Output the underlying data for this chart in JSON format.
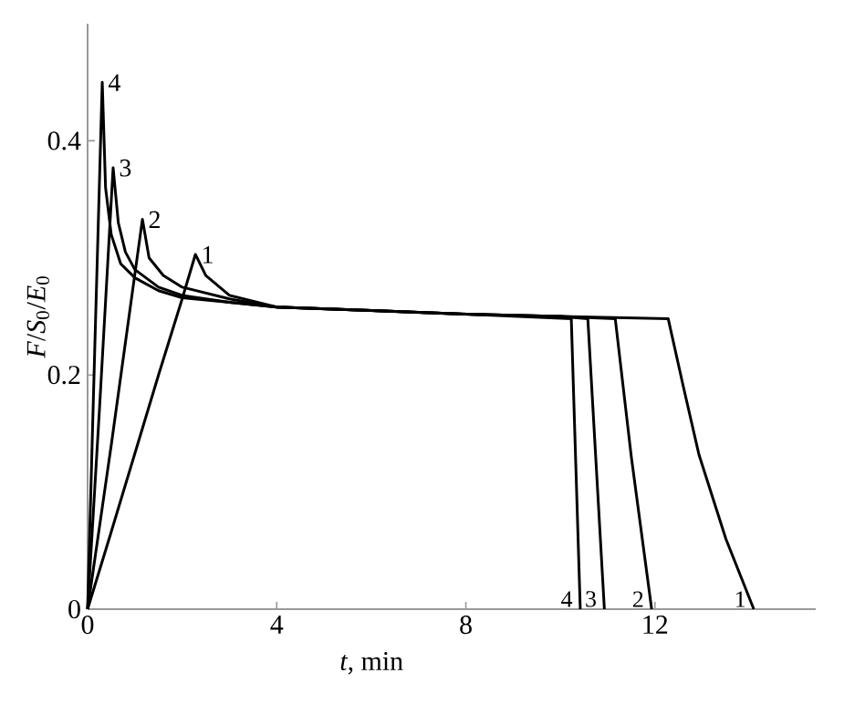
{
  "chart_data": {
    "type": "line",
    "xlabel": "*t*, min",
    "ylabel": "*F*/*S*$_{0}$/*E*$_{0}$",
    "xlim": [
      0,
      15.4
    ],
    "ylim": [
      0,
      0.5
    ],
    "xticks": [
      0,
      4,
      8,
      12
    ],
    "yticks": [
      0,
      0.2,
      0.4
    ],
    "line_style": "solid",
    "series": [
      {
        "name": "1",
        "color": "#000000",
        "x": [
          0,
          0.5,
          1,
          1.5,
          2,
          2.28,
          2.5,
          3,
          4,
          6,
          8,
          10,
          12.28,
          12.6,
          12.93,
          13.5,
          14.09
        ],
        "values": [
          0,
          0.066,
          0.133,
          0.2,
          0.265,
          0.303,
          0.285,
          0.268,
          0.258,
          0.255,
          0.252,
          0.25,
          0.248,
          0.19,
          0.132,
          0.06,
          0
        ]
      },
      {
        "name": "2",
        "color": "#000000",
        "x": [
          0,
          0.5,
          1.16,
          1.3,
          1.6,
          2,
          3,
          4,
          6,
          8,
          10,
          11.16,
          11.5,
          11.93
        ],
        "values": [
          0,
          0.14,
          0.333,
          0.3,
          0.285,
          0.275,
          0.265,
          0.258,
          0.255,
          0.252,
          0.25,
          0.248,
          0.13,
          0
        ]
      },
      {
        "name": "3",
        "color": "#000000",
        "x": [
          0,
          0.25,
          0.54,
          0.65,
          0.8,
          1.0,
          1.5,
          2,
          3,
          4,
          6,
          8,
          10,
          10.58,
          10.93
        ],
        "values": [
          0,
          0.17,
          0.377,
          0.33,
          0.305,
          0.29,
          0.275,
          0.268,
          0.262,
          0.258,
          0.255,
          0.252,
          0.25,
          0.248,
          0
        ]
      },
      {
        "name": "4",
        "color": "#000000",
        "x": [
          0,
          0.15,
          0.31,
          0.38,
          0.5,
          0.7,
          1.0,
          1.5,
          2,
          3,
          4,
          6,
          8,
          10.23,
          10.42
        ],
        "values": [
          0,
          0.22,
          0.45,
          0.36,
          0.32,
          0.295,
          0.283,
          0.272,
          0.266,
          0.262,
          0.258,
          0.255,
          0.252,
          0.248,
          0
        ]
      }
    ]
  }
}
